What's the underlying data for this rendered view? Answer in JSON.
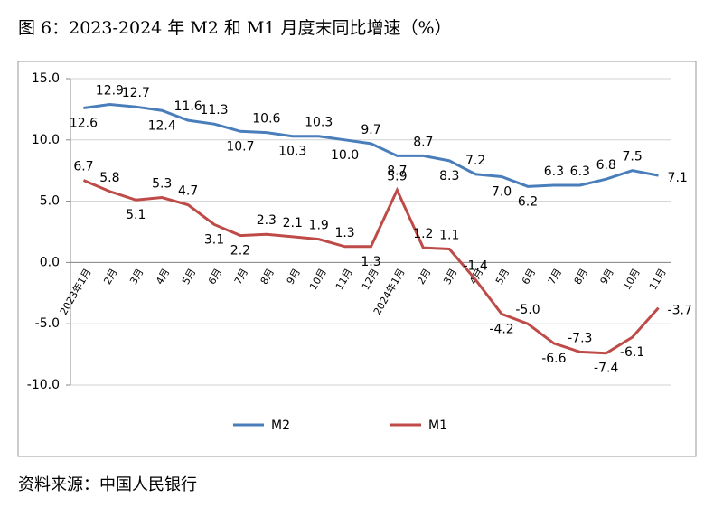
{
  "chart_data": {
    "type": "line",
    "title": "图 6：2023-2024 年 M2 和 M1 月度末同比增速（%）",
    "source": "资料来源：中国人民银行",
    "categories": [
      "2023年1月",
      "2月",
      "3月",
      "4月",
      "5月",
      "6月",
      "7月",
      "8月",
      "9月",
      "10月",
      "11月",
      "12月",
      "2024年1月",
      "2月",
      "3月",
      "4月",
      "5月",
      "6月",
      "7月",
      "8月",
      "9月",
      "10月",
      "11月"
    ],
    "series": [
      {
        "name": "M2",
        "color": "#4a7ebb",
        "values": [
          12.6,
          12.9,
          12.7,
          12.4,
          11.6,
          11.3,
          10.7,
          10.6,
          10.3,
          10.3,
          10.0,
          9.7,
          8.7,
          8.7,
          8.3,
          7.2,
          7.0,
          6.2,
          6.3,
          6.3,
          6.8,
          7.5,
          7.1
        ],
        "value_labels": [
          "12.6",
          "12.9",
          "12.7",
          "12.4",
          "11.6",
          "11.3",
          "10.7",
          "10.6",
          "10.3",
          "10.3",
          "10.0",
          "9.7",
          "8.7",
          "8.7",
          "8.3",
          "7.2",
          "7.0",
          "6.2",
          "6.3",
          "6.3",
          "6.8",
          "7.5",
          "7.1"
        ]
      },
      {
        "name": "M1",
        "color": "#be4b48",
        "values": [
          6.7,
          5.8,
          5.1,
          5.3,
          4.7,
          3.1,
          2.2,
          2.3,
          2.1,
          1.9,
          1.3,
          1.3,
          5.9,
          1.2,
          1.1,
          -1.4,
          -4.2,
          -5.0,
          -6.6,
          -7.3,
          -7.4,
          -6.1,
          -3.7
        ],
        "value_labels": [
          "6.7",
          "5.8",
          "5.1",
          "5.3",
          "4.7",
          "3.1",
          "2.2",
          "2.3",
          "2.1",
          "1.9",
          "1.3",
          "1.3",
          "5.9",
          "1.2",
          "1.1",
          "-1.4",
          "-4.2",
          "-5.0",
          "-6.6",
          "-7.3",
          "-7.4",
          "-6.1",
          "-3.7"
        ]
      }
    ],
    "ylim": [
      -10,
      15
    ],
    "yticks": [
      {
        "value": -10,
        "label": "-10.0"
      },
      {
        "value": -5,
        "label": "-5.0"
      },
      {
        "value": 0,
        "label": "0.0"
      },
      {
        "value": 5,
        "label": "5.0"
      },
      {
        "value": 10,
        "label": "10.0"
      },
      {
        "value": 15,
        "label": "15.0"
      }
    ],
    "grid": true,
    "legend": "bottom"
  }
}
